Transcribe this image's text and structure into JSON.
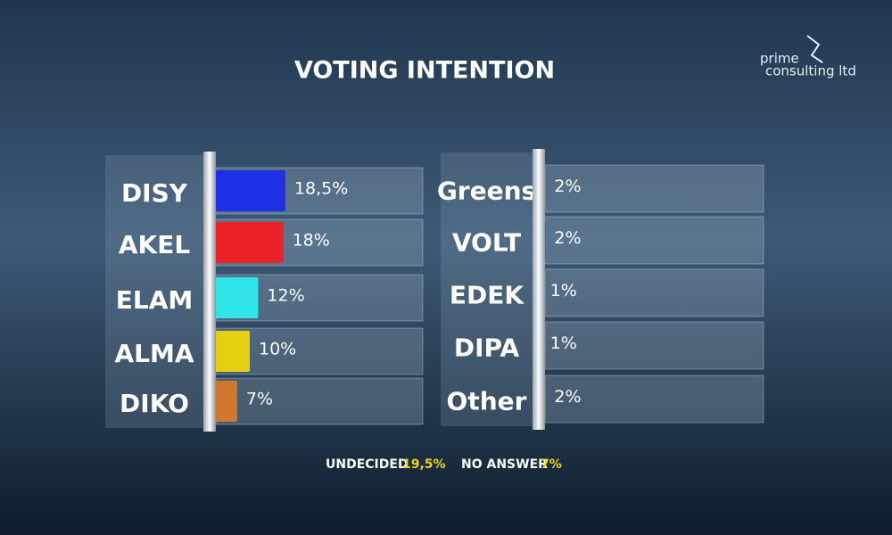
{
  "title": "VOTING INTENTION",
  "logo": {
    "line1": "prime",
    "line2": "consulting ltd"
  },
  "chart_data": [
    {
      "type": "bar",
      "categories": [
        "DISY",
        "AKEL",
        "ELAM",
        "ALMA",
        "DIKO"
      ],
      "values": [
        18.5,
        18,
        12,
        10,
        7
      ],
      "value_labels": [
        "18,5%",
        "18%",
        "12%",
        "10%",
        "7%"
      ],
      "colors": [
        "#1f2fe6",
        "#ea2328",
        "#30e6ea",
        "#e6cf12",
        "#d0782c"
      ]
    },
    {
      "type": "bar",
      "categories": [
        "Greens",
        "VOLT",
        "EDEK",
        "DIPA",
        "Other"
      ],
      "values": [
        2,
        2,
        1,
        1,
        2
      ],
      "value_labels": [
        "2%",
        "2%",
        "1%",
        "1%",
        "2%"
      ],
      "colors": [
        "#22d49a",
        "#8a22c8",
        "#62c834",
        "#c824c8",
        "#9aa6b4"
      ]
    }
  ],
  "footer": [
    {
      "label": "UNDECIDED",
      "value": "19,5%"
    },
    {
      "label": "NO ANSWER",
      "value": "7%"
    }
  ]
}
